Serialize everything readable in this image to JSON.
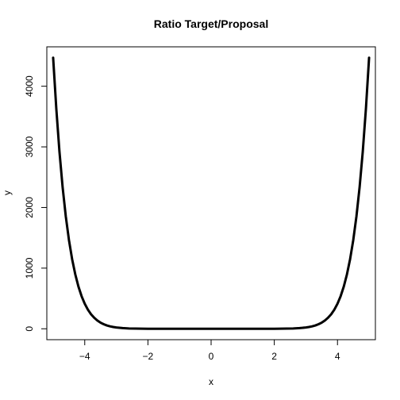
{
  "chart_data": {
    "type": "line",
    "title": "Ratio Target/Proposal",
    "xlabel": "x",
    "ylabel": "y",
    "xlim": [
      -5.2,
      5.2
    ],
    "ylim": [
      -180,
      4650
    ],
    "x_ticks": [
      -4,
      -2,
      0,
      2,
      4
    ],
    "x_tick_labels": [
      "−4",
      "−2",
      "0",
      "2",
      "4"
    ],
    "y_ticks": [
      0,
      1000,
      2000,
      3000,
      4000
    ],
    "y_tick_labels": [
      "0",
      "1000",
      "2000",
      "3000",
      "4000"
    ],
    "grid": false,
    "legend": "none",
    "series": [
      {
        "color": "#000000",
        "x": [
          -5.0,
          -4.9,
          -4.8,
          -4.7,
          -4.6,
          -4.5,
          -4.4,
          -4.3,
          -4.2,
          -4.1,
          -4.0,
          -3.9,
          -3.8,
          -3.7,
          -3.6,
          -3.5,
          -3.4,
          -3.3,
          -3.2,
          -3.1,
          -3.0,
          -2.8,
          -2.6,
          -2.4,
          -2.2,
          -2.0,
          -1.5,
          -1.0,
          -0.5,
          0.0,
          0.5,
          1.0,
          1.5,
          2.0,
          2.2,
          2.4,
          2.6,
          2.8,
          3.0,
          3.1,
          3.2,
          3.3,
          3.4,
          3.5,
          3.6,
          3.7,
          3.8,
          3.9,
          4.0,
          4.1,
          4.2,
          4.3,
          4.4,
          4.5,
          4.6,
          4.7,
          4.8,
          4.9,
          5.0
        ],
        "y": [
          4470,
          3630,
          2920,
          2335,
          1855,
          1465,
          1150,
          899,
          697,
          538,
          413,
          315,
          239,
          181,
          136,
          101,
          75,
          55,
          40,
          29,
          21,
          11,
          5.5,
          2.6,
          1.2,
          0.5,
          0.1,
          0,
          0,
          0,
          0,
          0,
          0.1,
          0.5,
          1.2,
          2.6,
          5.5,
          11,
          21,
          29,
          40,
          55,
          75,
          101,
          136,
          181,
          239,
          315,
          413,
          538,
          697,
          899,
          1150,
          1465,
          1855,
          2335,
          2920,
          3630,
          4470
        ]
      }
    ]
  }
}
